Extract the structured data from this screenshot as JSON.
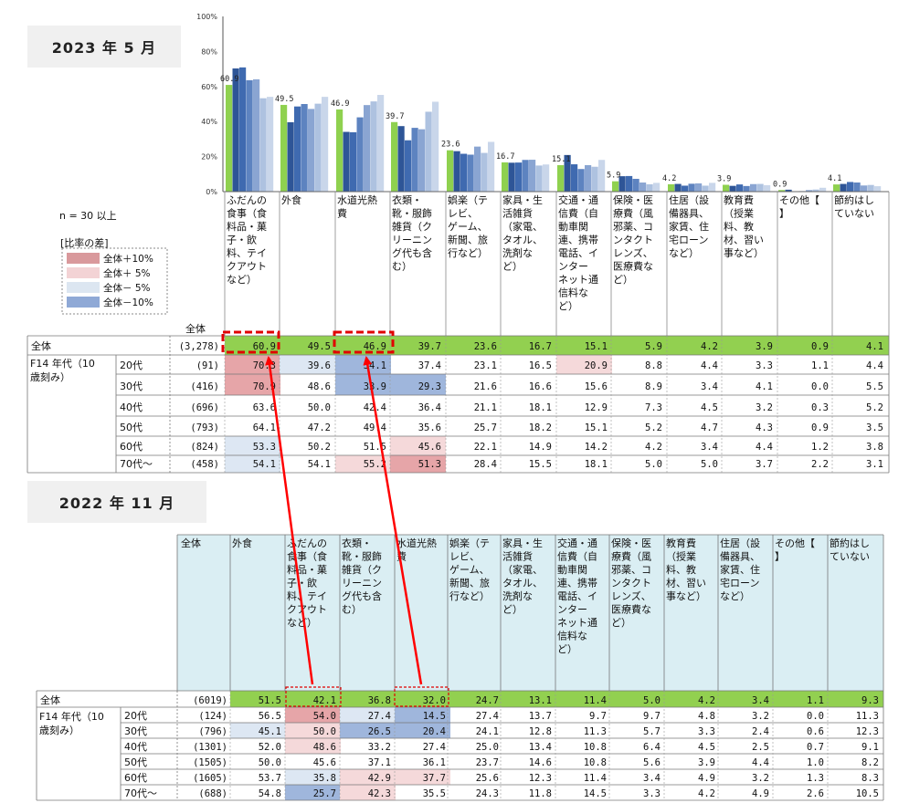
{
  "panel1": {
    "title": "2023 年 5 月",
    "n_note": "n = 30 以上",
    "legend_title": "[比率の差]",
    "legend": [
      {
        "label": "全体＋10%",
        "color": "#d9999c"
      },
      {
        "label": "全体＋ 5%",
        "color": "#f3d3d5"
      },
      {
        "label": "全体－ 5%",
        "color": "#dce6f1"
      },
      {
        "label": "全体－10%",
        "color": "#8fa9d6"
      }
    ],
    "all_header": "全体",
    "axis_ticks": [
      "0%",
      "20%",
      "40%",
      "60%",
      "80%",
      "100%"
    ],
    "series_colors": [
      "#8fd14f",
      "#2e5597",
      "#3f6ab0",
      "#5d83c0",
      "#8aa5d2",
      "#aec2e0",
      "#c9d6ea"
    ],
    "categories": [
      "ふだんの食事（食料品・菓子・飲料、テイクアウトなど）",
      "外食",
      "水道光熱費",
      "衣類・靴・服飾雑貨（クリーニング代も含む）",
      "娯楽（テレビ、ゲーム、新聞、旅行など）",
      "家具・生活雑貨（家電、タオル、洗剤など）",
      "交通・通信費（自動車関連、携帯電話、インターネット通信料など）",
      "保険・医療費（風邪薬、コンタクトレンズ、医療費など）",
      "住居（設備器具、家賃、住宅ローンなど）",
      "教育費（授業料、教材、習い事など）",
      "その他【】",
      "節約はしていない"
    ],
    "category_lines": [
      [
        "ふだんの",
        "食事（食",
        "料品・菓",
        "子・飲",
        "料、テイ",
        "クアウト",
        "など）"
      ],
      [
        "外食"
      ],
      [
        "水道光熱",
        "費"
      ],
      [
        "衣類・",
        "靴・服飾",
        "雑貨（ク",
        "リーニン",
        "グ代も含",
        "む）"
      ],
      [
        "娯楽（テ",
        "レビ、",
        "ゲーム、",
        "新聞、旅",
        "行など）"
      ],
      [
        "家具・生",
        "活雑貨",
        "（家電、",
        "タオル、",
        "洗剤な",
        "ど）"
      ],
      [
        "交通・通",
        "信費（自",
        "動車関",
        "連、携帯",
        "電話、イ",
        "ンター",
        "ネット通",
        "信料な",
        "ど）"
      ],
      [
        "保険・医",
        "療費（風",
        "邪薬、コ",
        "ンタクト",
        "レンズ、",
        "医療費な",
        "ど）"
      ],
      [
        "住居（設",
        "備器具、",
        "家賃、住",
        "宅ローン",
        "など）"
      ],
      [
        "教育費",
        "（授業",
        "料、教",
        "材、習い",
        "事など）"
      ],
      [
        "その他【",
        "】"
      ],
      [
        "節約はし",
        "ていない"
      ]
    ],
    "group_label_lines": [
      "F14 年代（10",
      "歳刻み）"
    ],
    "rows": [
      {
        "label": "全体",
        "n": "(3,278)",
        "values": [
          "60.9",
          "49.5",
          "46.9",
          "39.7",
          "23.6",
          "16.7",
          "15.1",
          "5.9",
          "4.2",
          "3.9",
          "0.9",
          "4.1"
        ]
      },
      {
        "label": "20代",
        "n": "(91)",
        "values": [
          "70.3",
          "39.6",
          "34.1",
          "37.4",
          "23.1",
          "16.5",
          "20.9",
          "8.8",
          "4.4",
          "3.3",
          "1.1",
          "4.4"
        ]
      },
      {
        "label": "30代",
        "n": "(416)",
        "values": [
          "70.9",
          "48.6",
          "33.9",
          "29.3",
          "21.6",
          "16.6",
          "15.6",
          "8.9",
          "3.4",
          "4.1",
          "0.0",
          "5.5"
        ]
      },
      {
        "label": "40代",
        "n": "(696)",
        "values": [
          "63.6",
          "50.0",
          "42.4",
          "36.4",
          "21.1",
          "18.1",
          "12.9",
          "7.3",
          "4.5",
          "3.2",
          "0.3",
          "5.2"
        ]
      },
      {
        "label": "50代",
        "n": "(793)",
        "values": [
          "64.1",
          "47.2",
          "49.4",
          "35.6",
          "25.7",
          "18.2",
          "15.1",
          "5.2",
          "4.7",
          "4.3",
          "0.9",
          "3.5"
        ]
      },
      {
        "label": "60代",
        "n": "(824)",
        "values": [
          "53.3",
          "50.2",
          "51.5",
          "45.6",
          "22.1",
          "14.9",
          "14.2",
          "4.2",
          "3.4",
          "4.4",
          "1.2",
          "3.8"
        ]
      },
      {
        "label": "70代～",
        "n": "(458)",
        "values": [
          "54.1",
          "54.1",
          "55.2",
          "51.3",
          "28.4",
          "15.5",
          "18.1",
          "5.0",
          "5.0",
          "3.7",
          "2.2",
          "3.1"
        ]
      }
    ],
    "highlight": [
      [
        null,
        null,
        null,
        null,
        null,
        null,
        null,
        null,
        null,
        null,
        null,
        null
      ],
      [
        "p10",
        "m5",
        "m10",
        null,
        null,
        null,
        "p5",
        null,
        null,
        null,
        null,
        null
      ],
      [
        "p10",
        null,
        "m10",
        "m10",
        null,
        null,
        null,
        null,
        null,
        null,
        null,
        null
      ],
      [
        null,
        null,
        null,
        null,
        null,
        null,
        null,
        null,
        null,
        null,
        null,
        null
      ],
      [
        null,
        null,
        null,
        null,
        null,
        null,
        null,
        null,
        null,
        null,
        null,
        null
      ],
      [
        "m5",
        null,
        null,
        "p5",
        null,
        null,
        null,
        null,
        null,
        null,
        null,
        null
      ],
      [
        "m5",
        null,
        "p5",
        "p10",
        null,
        null,
        null,
        null,
        null,
        null,
        null,
        null
      ]
    ]
  },
  "panel2": {
    "title": "2022 年 11 月",
    "all_header": "全体",
    "categories": [
      "外食",
      "ふだんの食事（食料品・菓子・飲料、テイクアウトなど）",
      "衣類・靴・服飾雑貨（クリーニング代も含む）",
      "水道光熱費",
      "娯楽（テレビ、ゲーム、新聞、旅行など）",
      "家具・生活雑貨（家電、タオル、洗剤など）",
      "交通・通信費（自動車関連、携帯電話、インターネット通信料など）",
      "保険・医療費（風邪薬、コンタクトレンズ、医療費など）",
      "教育費（授業料、教材、習い事など）",
      "住居（設備器具、家賃、住宅ローンなど）",
      "その他【】",
      "節約はしていない"
    ],
    "category_lines": [
      [
        "外食"
      ],
      [
        "ふだんの",
        "食事（食",
        "料品・菓",
        "子・飲",
        "料、テイ",
        "クアウト",
        "など）"
      ],
      [
        "衣類・",
        "靴・服飾",
        "雑貨（ク",
        "リーニン",
        "グ代も含",
        "む）"
      ],
      [
        "水道光熱",
        "費"
      ],
      [
        "娯楽（テ",
        "レビ、",
        "ゲーム、",
        "新聞、旅",
        "行など）"
      ],
      [
        "家具・生",
        "活雑貨",
        "（家電、",
        "タオル、",
        "洗剤な",
        "ど）"
      ],
      [
        "交通・通",
        "信費（自",
        "動車関",
        "連、携帯",
        "電話、イ",
        "ンター",
        "ネット通",
        "信料な",
        "ど）"
      ],
      [
        "保険・医",
        "療費（風",
        "邪薬、コ",
        "ンタクト",
        "レンズ、",
        "医療費な",
        "ど）"
      ],
      [
        "教育費",
        "（授業",
        "料、教",
        "材、習い",
        "事など）"
      ],
      [
        "住居（設",
        "備器具、",
        "家賃、住",
        "宅ローン",
        "など）"
      ],
      [
        "その他【",
        "】"
      ],
      [
        "節約はし",
        "ていない"
      ]
    ],
    "group_label_lines": [
      "F14 年代（10",
      "歳刻み）"
    ],
    "rows": [
      {
        "label": "全体",
        "n": "(6019)",
        "values": [
          "51.5",
          "42.1",
          "36.8",
          "32.0",
          "24.7",
          "13.1",
          "11.4",
          "5.0",
          "4.2",
          "3.4",
          "1.1",
          "9.3"
        ]
      },
      {
        "label": "20代",
        "n": "(124)",
        "values": [
          "56.5",
          "54.0",
          "27.4",
          "14.5",
          "27.4",
          "13.7",
          "9.7",
          "9.7",
          "4.8",
          "3.2",
          "0.0",
          "11.3"
        ]
      },
      {
        "label": "30代",
        "n": "(796)",
        "values": [
          "45.1",
          "50.0",
          "26.5",
          "20.4",
          "24.1",
          "12.8",
          "11.3",
          "5.7",
          "3.3",
          "2.4",
          "0.6",
          "12.3"
        ]
      },
      {
        "label": "40代",
        "n": "(1301)",
        "values": [
          "52.0",
          "48.6",
          "33.2",
          "27.4",
          "25.0",
          "13.4",
          "10.8",
          "6.4",
          "4.5",
          "2.5",
          "0.7",
          "9.1"
        ]
      },
      {
        "label": "50代",
        "n": "(1505)",
        "values": [
          "50.0",
          "45.6",
          "37.1",
          "36.1",
          "23.7",
          "14.6",
          "10.8",
          "5.6",
          "3.9",
          "4.4",
          "1.0",
          "8.2"
        ]
      },
      {
        "label": "60代",
        "n": "(1605)",
        "values": [
          "53.7",
          "35.8",
          "42.9",
          "37.7",
          "25.6",
          "12.3",
          "11.4",
          "3.4",
          "4.9",
          "3.2",
          "1.3",
          "8.3"
        ]
      },
      {
        "label": "70代～",
        "n": "(688)",
        "values": [
          "54.8",
          "25.7",
          "42.3",
          "35.5",
          "24.3",
          "11.8",
          "14.5",
          "3.3",
          "4.2",
          "4.9",
          "2.6",
          "10.5"
        ]
      }
    ],
    "highlight": [
      [
        null,
        null,
        null,
        null,
        null,
        null,
        null,
        null,
        null,
        null,
        null,
        null
      ],
      [
        null,
        "p10",
        "m5",
        "m10",
        null,
        null,
        null,
        null,
        null,
        null,
        null,
        null
      ],
      [
        "m5",
        "p5",
        "m10",
        "m10",
        null,
        null,
        null,
        null,
        null,
        null,
        null,
        null
      ],
      [
        null,
        "p5",
        null,
        null,
        null,
        null,
        null,
        null,
        null,
        null,
        null,
        null
      ],
      [
        null,
        null,
        null,
        null,
        null,
        null,
        null,
        null,
        null,
        null,
        null,
        null
      ],
      [
        null,
        "m5",
        "p5",
        "p5",
        null,
        null,
        null,
        null,
        null,
        null,
        null,
        null
      ],
      [
        null,
        "m10",
        "p5",
        null,
        null,
        null,
        null,
        null,
        null,
        null,
        null,
        null
      ]
    ]
  },
  "colors": {
    "total_row": "#92d050",
    "header_bg_2022": "#daeef3",
    "p10": "#e6a5a8",
    "p5": "#f5d9da",
    "m5": "#dde7f3",
    "m10": "#9fb6dc",
    "arrow": "#ff0000"
  },
  "chart_data": {
    "type": "bar",
    "title": "2023 年 5 月",
    "categories": [
      "ふだんの食事（食料品・菓子・飲料、テイクアウトなど）",
      "外食",
      "水道光熱費",
      "衣類・靴・服飾雑貨（クリーニング代も含む）",
      "娯楽（テレビ、ゲーム、新聞、旅行など）",
      "家具・生活雑貨（家電、タオル、洗剤など）",
      "交通・通信費（自動車関連、携帯電話、インターネット通信料など）",
      "保険・医療費（風邪薬、コンタクトレンズ、医療費など）",
      "住居（設備器具、家賃、住宅ローンなど）",
      "教育費（授業料、教材、習い事など）",
      "その他【】",
      "節約はしていない"
    ],
    "series": [
      {
        "name": "全体",
        "values": [
          60.9,
          49.5,
          46.9,
          39.7,
          23.6,
          16.7,
          15.1,
          5.9,
          4.2,
          3.9,
          0.9,
          4.1
        ]
      },
      {
        "name": "20代",
        "values": [
          70.3,
          39.6,
          34.1,
          37.4,
          23.1,
          16.5,
          20.9,
          8.8,
          4.4,
          3.3,
          1.1,
          4.4
        ]
      },
      {
        "name": "30代",
        "values": [
          70.9,
          48.6,
          33.9,
          29.3,
          21.6,
          16.6,
          15.6,
          8.9,
          3.4,
          4.1,
          0.0,
          5.5
        ]
      },
      {
        "name": "40代",
        "values": [
          63.6,
          50.0,
          42.4,
          36.4,
          21.1,
          18.1,
          12.9,
          7.3,
          4.5,
          3.2,
          0.3,
          5.2
        ]
      },
      {
        "name": "50代",
        "values": [
          64.1,
          47.2,
          49.4,
          35.6,
          25.7,
          18.2,
          15.1,
          5.2,
          4.7,
          4.3,
          0.9,
          3.5
        ]
      },
      {
        "name": "60代",
        "values": [
          53.3,
          50.2,
          51.5,
          45.6,
          22.1,
          14.9,
          14.2,
          4.2,
          3.4,
          4.4,
          1.2,
          3.8
        ]
      },
      {
        "name": "70代～",
        "values": [
          54.1,
          54.1,
          55.2,
          51.3,
          28.4,
          15.5,
          18.1,
          5.0,
          5.0,
          3.7,
          2.2,
          3.1
        ]
      }
    ],
    "data_labels_series": "全体",
    "ylim": [
      0,
      100
    ],
    "yticks": [
      "0%",
      "20%",
      "40%",
      "60%",
      "80%",
      "100%"
    ],
    "xlabel": "",
    "ylabel": "",
    "grid": false
  }
}
